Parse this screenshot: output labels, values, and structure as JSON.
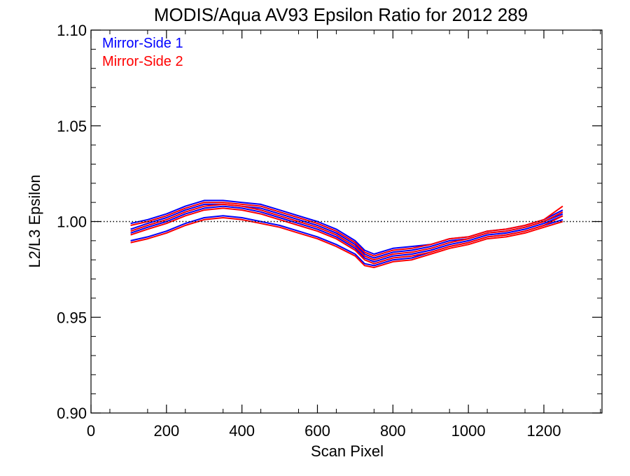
{
  "chart_data": {
    "type": "line",
    "title": "MODIS/Aqua AV93 Epsilon Ratio for 2012 289",
    "xlabel": "Scan Pixel",
    "ylabel": "L2/L3 Epsilon",
    "xlim": [
      0,
      1354
    ],
    "ylim": [
      0.9,
      1.1
    ],
    "x_ticks": [
      0,
      200,
      400,
      600,
      800,
      1000,
      1200
    ],
    "x_tick_labels": [
      "0",
      "200",
      "400",
      "600",
      "800",
      "1000",
      "1200"
    ],
    "y_ticks": [
      0.9,
      0.95,
      1.0,
      1.05,
      1.1
    ],
    "y_tick_labels": [
      "0.90",
      "0.95",
      "1.00",
      "1.05",
      "1.10"
    ],
    "reference_line": 1.0,
    "grid": false,
    "legend_position": "top-left",
    "colors": {
      "mirror_side_1": "#0000ff",
      "mirror_side_2": "#ff0000",
      "axes": "#000000"
    },
    "x": [
      105,
      150,
      200,
      250,
      300,
      350,
      400,
      450,
      500,
      550,
      600,
      650,
      700,
      725,
      750,
      800,
      850,
      900,
      950,
      1000,
      1050,
      1100,
      1150,
      1200,
      1250
    ],
    "series": [
      {
        "name": "Mirror-Side 1",
        "color": "#0000ff",
        "values": [
          0.999,
          1.001,
          1.004,
          1.008,
          1.011,
          1.011,
          1.01,
          1.009,
          1.006,
          1.003,
          1.0,
          0.996,
          0.99,
          0.985,
          0.983,
          0.986,
          0.987,
          0.988,
          0.991,
          0.992,
          0.995,
          0.996,
          0.998,
          1.001,
          1.006
        ]
      },
      {
        "name": "Mirror-Side 1",
        "color": "#0000ff",
        "values": [
          0.996,
          0.999,
          1.002,
          1.006,
          1.009,
          1.009,
          1.008,
          1.007,
          1.004,
          1.001,
          0.998,
          0.994,
          0.988,
          0.983,
          0.981,
          0.984,
          0.985,
          0.987,
          0.99,
          0.991,
          0.994,
          0.995,
          0.997,
          1.0,
          1.004
        ]
      },
      {
        "name": "Mirror-Side 1",
        "color": "#0000ff",
        "values": [
          0.994,
          0.997,
          1.0,
          1.004,
          1.007,
          1.008,
          1.007,
          1.005,
          1.002,
          0.999,
          0.996,
          0.992,
          0.986,
          0.981,
          0.979,
          0.982,
          0.983,
          0.985,
          0.988,
          0.99,
          0.993,
          0.994,
          0.996,
          0.999,
          1.003
        ]
      },
      {
        "name": "Mirror-Side 1",
        "color": "#0000ff",
        "values": [
          0.99,
          0.992,
          0.995,
          0.999,
          1.002,
          1.003,
          1.002,
          1.0,
          0.998,
          0.995,
          0.992,
          0.988,
          0.983,
          0.978,
          0.977,
          0.98,
          0.981,
          0.984,
          0.987,
          0.989,
          0.992,
          0.993,
          0.995,
          0.998,
          1.001
        ]
      },
      {
        "name": "Mirror-Side 2",
        "color": "#ff0000",
        "values": [
          0.998,
          1.0,
          1.003,
          1.007,
          1.01,
          1.01,
          1.009,
          1.008,
          1.005,
          1.002,
          0.999,
          0.995,
          0.989,
          0.984,
          0.982,
          0.985,
          0.986,
          0.988,
          0.991,
          0.992,
          0.995,
          0.996,
          0.998,
          1.001,
          1.008
        ]
      },
      {
        "name": "Mirror-Side 2",
        "color": "#ff0000",
        "values": [
          0.995,
          0.998,
          1.001,
          1.005,
          1.008,
          1.009,
          1.008,
          1.006,
          1.003,
          1.0,
          0.997,
          0.993,
          0.987,
          0.982,
          0.98,
          0.983,
          0.984,
          0.986,
          0.989,
          0.991,
          0.994,
          0.995,
          0.997,
          1.0,
          1.005
        ]
      },
      {
        "name": "Mirror-Side 2",
        "color": "#ff0000",
        "values": [
          0.993,
          0.996,
          0.999,
          1.003,
          1.006,
          1.007,
          1.006,
          1.004,
          1.001,
          0.998,
          0.995,
          0.991,
          0.985,
          0.98,
          0.978,
          0.981,
          0.982,
          0.984,
          0.987,
          0.989,
          0.992,
          0.993,
          0.995,
          0.998,
          1.003
        ]
      },
      {
        "name": "Mirror-Side 2",
        "color": "#ff0000",
        "values": [
          0.989,
          0.991,
          0.994,
          0.998,
          1.001,
          1.002,
          1.001,
          0.999,
          0.997,
          0.994,
          0.991,
          0.987,
          0.982,
          0.977,
          0.976,
          0.979,
          0.98,
          0.983,
          0.986,
          0.988,
          0.991,
          0.992,
          0.994,
          0.997,
          1.0
        ]
      }
    ]
  }
}
